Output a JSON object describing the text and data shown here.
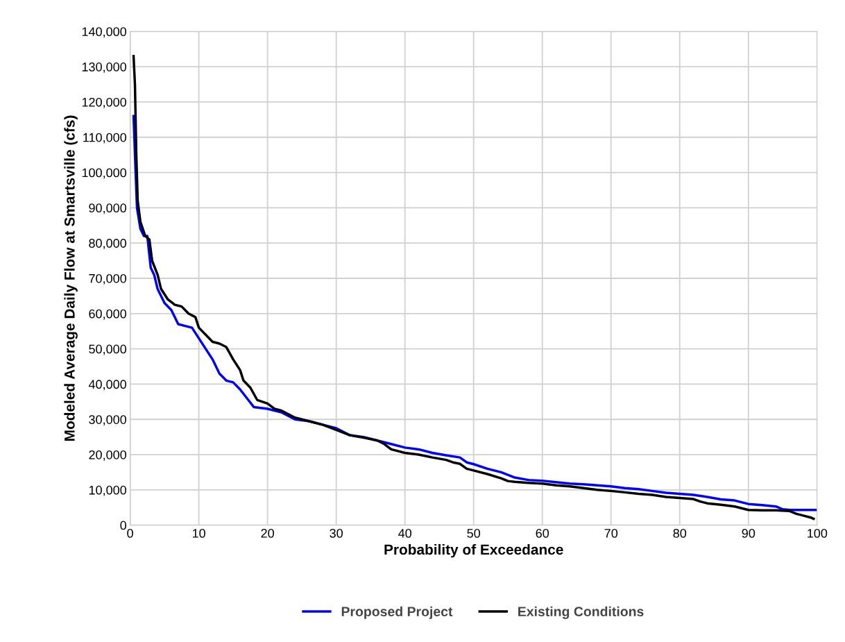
{
  "chart_data": {
    "type": "line",
    "xlabel": "Probability of Exceedance",
    "ylabel": "Modeled Average Daily Flow at Smartsville (cfs)",
    "xlim": [
      0,
      100
    ],
    "xticks": [
      0,
      10,
      20,
      30,
      40,
      50,
      60,
      70,
      80,
      90,
      100
    ],
    "ylim": [
      0,
      140000
    ],
    "yticks": [
      {
        "value": 0,
        "label": "0"
      },
      {
        "value": 10000,
        "label": "10,000"
      },
      {
        "value": 20000,
        "label": "20,000"
      },
      {
        "value": 30000,
        "label": "30,000"
      },
      {
        "value": 40000,
        "label": "40,000"
      },
      {
        "value": 50000,
        "label": "50,000"
      },
      {
        "value": 60000,
        "label": "60,000"
      },
      {
        "value": 70000,
        "label": "70,000"
      },
      {
        "value": 80000,
        "label": "80,000"
      },
      {
        "value": 90000,
        "label": "90,000"
      },
      {
        "value": 100000,
        "label": "100,000"
      },
      {
        "value": 110000,
        "label": "110,000"
      },
      {
        "value": 120000,
        "label": "120,000"
      },
      {
        "value": 130000,
        "label": "130,000"
      },
      {
        "value": 140000,
        "label": "140,000"
      }
    ],
    "grid": true,
    "legend": "bottom",
    "marker": "none",
    "line_style": "solid",
    "series": [
      {
        "name": "Proposed Project",
        "color": "#0000ff",
        "x": [
          0.5,
          0.8,
          1.0,
          1.5,
          2,
          2.5,
          3,
          3.5,
          4,
          5,
          6,
          7,
          8,
          9,
          10,
          11,
          12,
          13,
          14,
          15,
          16,
          17,
          18,
          20,
          22,
          24,
          26,
          28,
          30,
          32,
          34,
          36,
          38,
          40,
          42,
          44,
          46,
          48,
          49,
          50,
          52,
          54,
          56,
          58,
          60,
          62,
          64,
          66,
          68,
          70,
          72,
          74,
          76,
          78,
          80,
          82,
          84,
          86,
          88,
          89,
          90,
          92,
          94,
          95,
          96,
          100
        ],
        "values": [
          116000,
          100000,
          90000,
          84000,
          82000,
          82000,
          73000,
          71000,
          67000,
          63000,
          61000,
          57000,
          56500,
          56000,
          53000,
          50000,
          47000,
          43000,
          41000,
          40500,
          38500,
          36000,
          33500,
          33000,
          32000,
          30000,
          29500,
          28500,
          27500,
          25500,
          25000,
          24000,
          23000,
          22000,
          21500,
          20500,
          19800,
          19200,
          17800,
          17300,
          16000,
          15000,
          13500,
          12800,
          12600,
          12200,
          11800,
          11600,
          11300,
          11000,
          10500,
          10200,
          9700,
          9200,
          8900,
          8600,
          8000,
          7300,
          7000,
          6500,
          6000,
          5700,
          5300,
          4500,
          4300,
          4300
        ]
      },
      {
        "name": "Existing Conditions",
        "color": "#000000",
        "x": [
          0.5,
          0.7,
          0.9,
          1.1,
          1.5,
          2.2,
          2.8,
          3.2,
          3.6,
          4,
          4.5,
          5.5,
          6.5,
          7.5,
          8.5,
          9.5,
          10,
          11,
          12,
          13,
          14,
          15,
          16,
          16.5,
          17.5,
          18.5,
          20,
          21,
          22,
          24,
          26,
          28,
          30,
          32,
          34,
          36,
          37,
          38,
          40,
          42,
          44,
          46,
          47,
          48,
          49,
          50,
          52,
          54,
          55,
          56,
          58,
          60,
          62,
          64,
          66,
          68,
          70,
          72,
          74,
          76,
          78,
          80,
          82,
          83,
          84,
          86,
          88,
          89,
          90,
          92,
          94,
          96,
          97,
          98,
          99,
          99.5
        ],
        "values": [
          133000,
          125000,
          105000,
          92000,
          86000,
          82000,
          81000,
          75000,
          73000,
          71000,
          67000,
          64000,
          62500,
          62000,
          60000,
          59000,
          56000,
          54000,
          52000,
          51500,
          50500,
          47000,
          44000,
          41000,
          39000,
          35500,
          34500,
          33000,
          32500,
          30500,
          29500,
          28500,
          27000,
          25500,
          24800,
          24000,
          23000,
          21500,
          20500,
          20000,
          19200,
          18500,
          17800,
          17400,
          16000,
          15500,
          14500,
          13300,
          12500,
          12300,
          12000,
          11800,
          11300,
          11000,
          10500,
          10000,
          9700,
          9300,
          8900,
          8600,
          8000,
          7700,
          7400,
          6700,
          6200,
          5800,
          5300,
          4800,
          4300,
          4200,
          4200,
          4000,
          3200,
          2700,
          2200,
          1800
        ]
      }
    ]
  }
}
